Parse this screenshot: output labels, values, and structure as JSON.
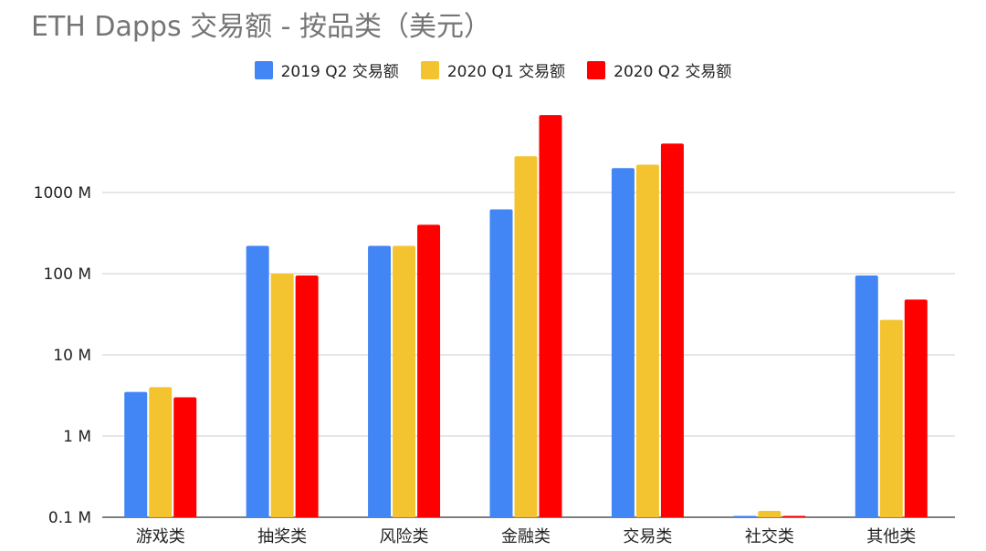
{
  "chart_data": {
    "type": "bar",
    "title": "ETH Dapps 交易额 - 按品类（美元）",
    "y_scale": "log",
    "ylim": [
      0.1,
      10000
    ],
    "y_ticks": [
      0.1,
      1,
      10,
      100,
      1000
    ],
    "y_tick_labels": [
      "0.1 M",
      "1 M",
      "10 M",
      "100 M",
      "1000 M"
    ],
    "grid": true,
    "legend_position": "top",
    "categories": [
      "游戏类",
      "抽奖类",
      "风险类",
      "金融类",
      "交易类",
      "社交类",
      "其他类"
    ],
    "series": [
      {
        "name": "2019 Q2 交易额",
        "color": "#4285F4",
        "values": [
          3.5,
          220,
          220,
          620,
          2000,
          0.1,
          95
        ]
      },
      {
        "name": "2020 Q1 交易额",
        "color": "#F4C430",
        "values": [
          4.0,
          100,
          220,
          2800,
          2200,
          0.12,
          27
        ]
      },
      {
        "name": "2020 Q2 交易额",
        "color": "#FF0000",
        "values": [
          3.0,
          95,
          400,
          9000,
          4000,
          0.1,
          48
        ]
      }
    ]
  }
}
